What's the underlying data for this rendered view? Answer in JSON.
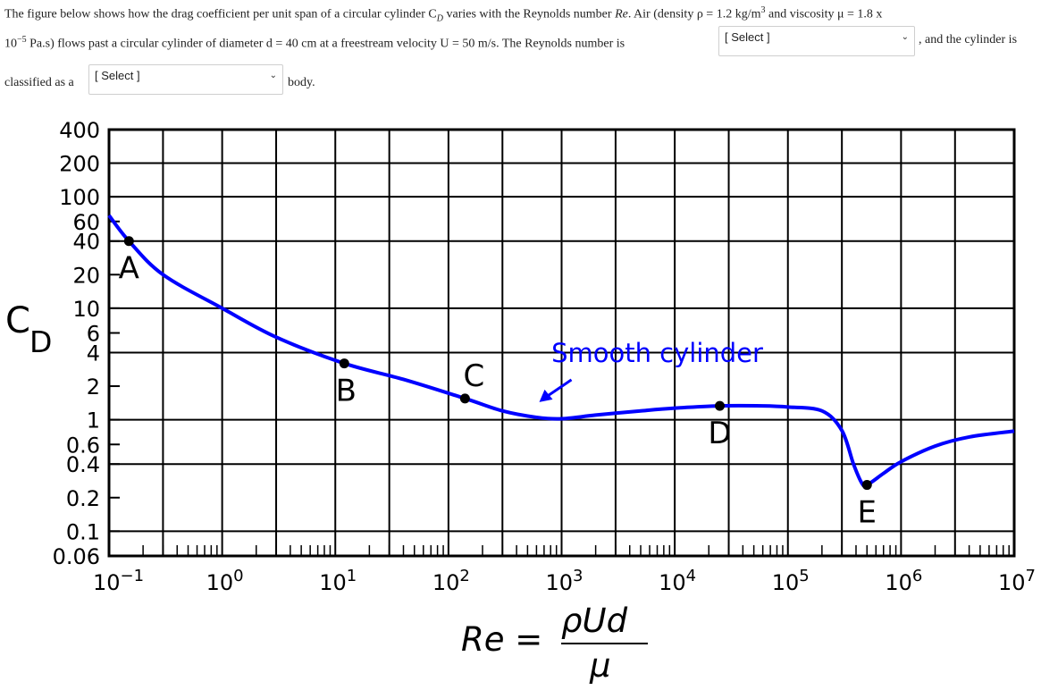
{
  "question": {
    "line1": "The figure below shows how the drag coefficient per unit span of a circular cylinder C",
    "cd_sub": "D",
    "line1b": " varies with the Reynolds number ",
    "re": "Re",
    "line1c": ". Air (density ρ = 1.2 kg/m",
    "cube": "3",
    "line1d": " and viscosity μ = 1.8 x",
    "line2a": "10",
    "exp": "−5",
    "line2b": " Pa.s) flows past a circular cylinder of diameter d = 40 cm at a freestream velocity U = 50 m/s. The Reynolds number is",
    "line2c": ", and the cylinder is",
    "line3a": "classified as a",
    "line3b": "body.",
    "select1": "[ Select ]",
    "select2": "[ Select ]",
    "chevron": "⌄"
  },
  "chart_data": {
    "type": "line",
    "x_scale": "log",
    "y_scale": "log",
    "xlim": [
      0.1,
      10000000
    ],
    "ylim": [
      0.06,
      400
    ],
    "grid": true,
    "ylabel": "C",
    "ylabel_sub": "D",
    "xlabel_formula": {
      "lhs": "Re =",
      "numerator": "ρUd",
      "denominator": "μ"
    },
    "x_ticks": [
      {
        "base": "10",
        "exp": "−1"
      },
      {
        "base": "10",
        "exp": "0"
      },
      {
        "base": "10",
        "exp": "1"
      },
      {
        "base": "10",
        "exp": "2"
      },
      {
        "base": "10",
        "exp": "3"
      },
      {
        "base": "10",
        "exp": "4"
      },
      {
        "base": "10",
        "exp": "5"
      },
      {
        "base": "10",
        "exp": "6"
      },
      {
        "base": "10",
        "exp": "7"
      }
    ],
    "y_ticks": [
      {
        "label": "400",
        "value": 400
      },
      {
        "label": "200",
        "value": 200
      },
      {
        "label": "100",
        "value": 100
      },
      {
        "label": "60",
        "value": 60
      },
      {
        "label": "40",
        "value": 40
      },
      {
        "label": "20",
        "value": 20
      },
      {
        "label": "10",
        "value": 10
      },
      {
        "label": "6",
        "value": 6
      },
      {
        "label": "4",
        "value": 4
      },
      {
        "label": "2",
        "value": 2
      },
      {
        "label": "1",
        "value": 1
      },
      {
        "label": "0.6",
        "value": 0.6
      },
      {
        "label": "0.4",
        "value": 0.4
      },
      {
        "label": "0.2",
        "value": 0.2
      },
      {
        "label": "0.1",
        "value": 0.1
      },
      {
        "label": "0.06",
        "value": 0.06
      }
    ],
    "series": [
      {
        "color": "#0000ff",
        "points": [
          [
            0.1,
            68
          ],
          [
            0.15,
            40
          ],
          [
            0.3,
            20
          ],
          [
            1,
            10
          ],
          [
            3,
            5.5
          ],
          [
            12,
            3.2
          ],
          [
            40,
            2.3
          ],
          [
            140,
            1.55
          ],
          [
            300,
            1.2
          ],
          [
            600,
            1.05
          ],
          [
            1000,
            1.02
          ],
          [
            2000,
            1.1
          ],
          [
            5000,
            1.2
          ],
          [
            10000,
            1.27
          ],
          [
            25000,
            1.33
          ],
          [
            60000,
            1.33
          ],
          [
            100000,
            1.3
          ],
          [
            200000,
            1.2
          ],
          [
            300000,
            0.8
          ],
          [
            380000,
            0.4
          ],
          [
            450000,
            0.27
          ],
          [
            500000,
            0.26
          ],
          [
            700000,
            0.33
          ],
          [
            1000000,
            0.42
          ],
          [
            2000000,
            0.58
          ],
          [
            4000000,
            0.7
          ],
          [
            10000000,
            0.79
          ]
        ]
      }
    ],
    "points": [
      {
        "label": "A",
        "x": 0.15,
        "y": 40
      },
      {
        "label": "B",
        "x": 12,
        "y": 3.2
      },
      {
        "label": "C",
        "x": 140,
        "y": 1.55
      },
      {
        "label": "D",
        "x": 25000,
        "y": 1.33
      },
      {
        "label": "E",
        "x": 500000,
        "y": 0.26
      }
    ],
    "annotation": {
      "text": "Smooth cylinder",
      "color": "#0000ff",
      "x": 7000,
      "y": 3.3
    }
  }
}
